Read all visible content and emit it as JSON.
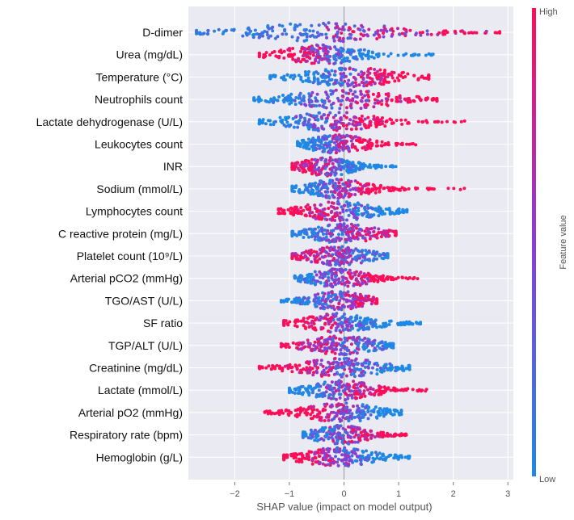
{
  "chart_data": {
    "type": "scatter",
    "subtype": "shap-beeswarm",
    "xlabel": "SHAP value (impact on model output)",
    "xlim": [
      -2.85,
      3.1
    ],
    "xticks": [
      -2,
      -1,
      0,
      1,
      2,
      3
    ],
    "xtick_labels": [
      "−2",
      "−1",
      "0",
      "1",
      "2",
      "3"
    ],
    "colorbar": {
      "label": "Feature value",
      "high": "High",
      "low": "Low",
      "high_color": "#ff0d57",
      "low_color": "#1e88e5"
    },
    "grid": true,
    "features": [
      {
        "name": "D-dimer",
        "min": -2.7,
        "max": 2.85,
        "mode": -0.35,
        "high": "right",
        "corr": 0.3
      },
      {
        "name": "Urea (mg/dL)",
        "min": -1.55,
        "max": 1.65,
        "mode": -0.4,
        "high": "left",
        "corr": 1
      },
      {
        "name": "Temperature (°C)",
        "min": -1.35,
        "max": 1.55,
        "mode": 0.15,
        "high": "right",
        "corr": 1.2
      },
      {
        "name": "Neutrophils count",
        "min": -1.65,
        "max": 1.7,
        "mode": 0.0,
        "high": "right",
        "corr": 0.7
      },
      {
        "name": "Lactate dehydrogenase (U/L)",
        "min": -1.55,
        "max": 2.3,
        "mode": -0.2,
        "high": "right",
        "corr": 0.8
      },
      {
        "name": "Leukocytes count",
        "min": -0.85,
        "max": 1.35,
        "mode": -0.1,
        "high": "right",
        "corr": 1
      },
      {
        "name": "INR",
        "min": -0.95,
        "max": 0.95,
        "mode": -0.3,
        "high": "left",
        "corr": 0.8
      },
      {
        "name": "Sodium (mmol/L)",
        "min": -0.95,
        "max": 2.25,
        "mode": -0.1,
        "high": "right",
        "corr": 1
      },
      {
        "name": "Lymphocytes count",
        "min": -1.2,
        "max": 1.15,
        "mode": -0.1,
        "high": "left",
        "corr": 1
      },
      {
        "name": "C reactive protein (mg/L)",
        "min": -0.95,
        "max": 0.95,
        "mode": 0.0,
        "high": "right",
        "corr": 0.6
      },
      {
        "name": "Platelet count (10⁹/L)",
        "min": -0.95,
        "max": 0.8,
        "mode": -0.1,
        "high": "left",
        "corr": 0.5
      },
      {
        "name": "Arterial pCO2 (mmHg)",
        "min": -0.9,
        "max": 1.4,
        "mode": -0.1,
        "high": "right",
        "corr": 0.7
      },
      {
        "name": "TGO/AST (U/L)",
        "min": -1.15,
        "max": 0.6,
        "mode": -0.1,
        "high": "right",
        "corr": 0.6
      },
      {
        "name": "SF ratio",
        "min": -1.1,
        "max": 1.4,
        "mode": -0.1,
        "high": "left",
        "corr": 1
      },
      {
        "name": "TGP/ALT (U/L)",
        "min": -1.15,
        "max": 0.9,
        "mode": -0.05,
        "high": "left",
        "corr": 0.5
      },
      {
        "name": "Creatinine (mg/dL)",
        "min": -1.55,
        "max": 1.2,
        "mode": -0.05,
        "high": "left",
        "corr": 0.8
      },
      {
        "name": "Lactate (mmol/L)",
        "min": -1.0,
        "max": 1.55,
        "mode": -0.05,
        "high": "right",
        "corr": 0.8
      },
      {
        "name": "Arterial pO2 (mmHg)",
        "min": -1.45,
        "max": 1.05,
        "mode": -0.05,
        "high": "left",
        "corr": 1
      },
      {
        "name": "Respiratory rate (bpm)",
        "min": -0.75,
        "max": 1.15,
        "mode": -0.05,
        "high": "right",
        "corr": 0.6
      },
      {
        "name": "Hemoglobin (g/L)",
        "min": -1.1,
        "max": 1.2,
        "mode": -0.1,
        "high": "left",
        "corr": 0.9
      }
    ]
  }
}
